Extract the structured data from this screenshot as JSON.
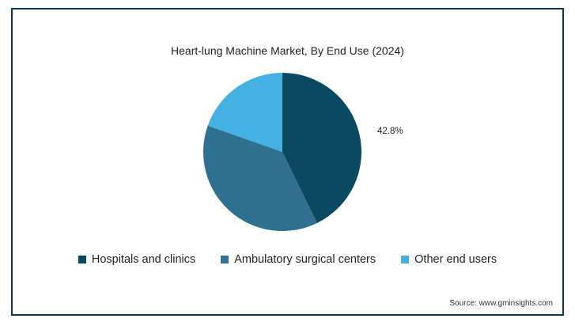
{
  "chart_data": {
    "type": "pie",
    "title": "Heart-lung Machine Market, By End Use (2024)",
    "series": [
      {
        "name": "Hospitals and clinics",
        "value": 42.8,
        "color": "#0a4a60"
      },
      {
        "name": "Ambulatory surgical centers",
        "value": 37.6,
        "color": "#2f6f8f"
      },
      {
        "name": "Other end users",
        "value": 19.6,
        "color": "#45b1e3"
      }
    ],
    "data_labels": [
      {
        "series": "Hospitals and clinics",
        "text": "42.8%"
      }
    ],
    "legend_position": "bottom"
  },
  "source_text": "Source: www.gminsights.com"
}
